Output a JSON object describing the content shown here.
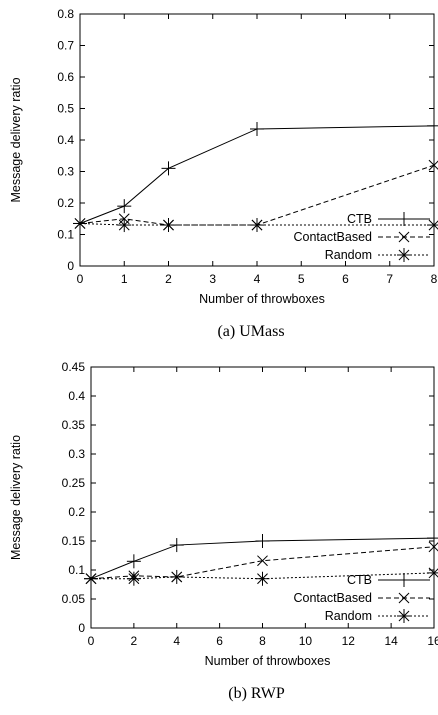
{
  "chart_data": [
    {
      "type": "line",
      "caption": "(a) UMass",
      "xlabel": "Number of throwboxes",
      "ylabel": "Message delivery ratio",
      "x_ticks": [
        "0",
        "1",
        "2",
        "3",
        "4",
        "5",
        "6",
        "7",
        "8"
      ],
      "x_tick_values": [
        0,
        1,
        2,
        3,
        4,
        5,
        6,
        7,
        8
      ],
      "y_ticks": [
        "0",
        "0.1",
        "0.2",
        "0.3",
        "0.4",
        "0.5",
        "0.6",
        "0.7",
        "0.8"
      ],
      "y_tick_values": [
        0,
        0.1,
        0.2,
        0.3,
        0.4,
        0.5,
        0.6,
        0.7,
        0.8
      ],
      "xlim": [
        0,
        8
      ],
      "ylim": [
        0,
        0.8
      ],
      "legend_position": "bottom-right",
      "x": [
        0,
        1,
        2,
        4,
        8
      ],
      "series": [
        {
          "name": "CTB",
          "values": [
            0.135,
            0.19,
            0.31,
            0.435,
            0.445
          ],
          "marker": "plus",
          "line": "solid"
        },
        {
          "name": "ContactBased",
          "values": [
            0.135,
            0.15,
            0.13,
            0.13,
            0.32
          ],
          "marker": "cross",
          "line": "dashed"
        },
        {
          "name": "Random",
          "values": [
            0.135,
            0.13,
            0.13,
            0.13,
            0.13
          ],
          "marker": "star",
          "line": "dotted"
        }
      ]
    },
    {
      "type": "line",
      "caption": "(b) RWP",
      "xlabel": "Number of throwboxes",
      "ylabel": "Message delivery ratio",
      "x_ticks": [
        "0",
        "2",
        "4",
        "6",
        "8",
        "10",
        "12",
        "14",
        "16"
      ],
      "x_tick_values": [
        0,
        2,
        4,
        6,
        8,
        10,
        12,
        14,
        16
      ],
      "y_ticks": [
        "0",
        "0.05",
        "0.1",
        "0.15",
        "0.2",
        "0.25",
        "0.3",
        "0.35",
        "0.4",
        "0.45"
      ],
      "y_tick_values": [
        0,
        0.05,
        0.1,
        0.15,
        0.2,
        0.25,
        0.3,
        0.35,
        0.4,
        0.45
      ],
      "xlim": [
        0,
        16
      ],
      "ylim": [
        0,
        0.45
      ],
      "legend_position": "bottom-right",
      "x": [
        0,
        2,
        4,
        8,
        16
      ],
      "series": [
        {
          "name": "CTB",
          "values": [
            0.085,
            0.115,
            0.143,
            0.15,
            0.155
          ],
          "marker": "plus",
          "line": "solid"
        },
        {
          "name": "ContactBased",
          "values": [
            0.085,
            0.09,
            0.088,
            0.116,
            0.14
          ],
          "marker": "cross",
          "line": "dashed"
        },
        {
          "name": "Random",
          "values": [
            0.085,
            0.085,
            0.088,
            0.085,
            0.095
          ],
          "marker": "star",
          "line": "dotted"
        }
      ]
    }
  ]
}
